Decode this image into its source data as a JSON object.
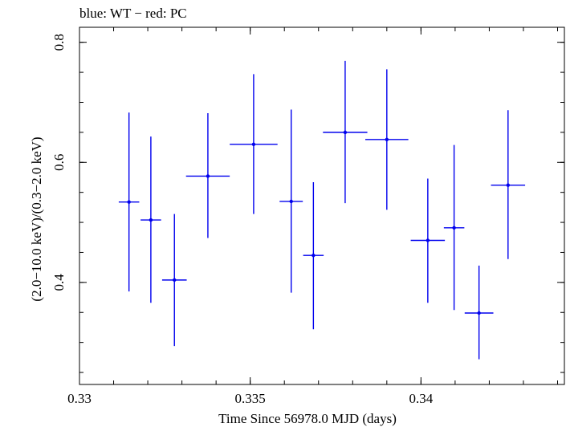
{
  "header": {
    "caption": "blue: WT − red: PC"
  },
  "chart_data": {
    "type": "scatter",
    "title": "",
    "xlabel": "Time Since 56978.0 MJD (days)",
    "ylabel": "(2.0−10.0 keV)/(0.3−2.0 keV)",
    "xlim": [
      0.33,
      0.3442
    ],
    "ylim": [
      0.23,
      0.825
    ],
    "xticks": [
      {
        "value": 0.33,
        "label": "0.33"
      },
      {
        "value": 0.335,
        "label": "0.335"
      },
      {
        "value": 0.34,
        "label": "0.34"
      }
    ],
    "yticks": [
      {
        "value": 0.4,
        "label": "0.4"
      },
      {
        "value": 0.6,
        "label": "0.6"
      },
      {
        "value": 0.8,
        "label": "0.8"
      }
    ],
    "grid": false,
    "series": [
      {
        "color": "#0000ee",
        "points": [
          {
            "x": 0.33145,
            "xerr": 0.0003,
            "y": 0.534,
            "ylo": 0.385,
            "yhi": 0.683
          },
          {
            "x": 0.33209,
            "xerr": 0.0003,
            "y": 0.504,
            "ylo": 0.366,
            "yhi": 0.643
          },
          {
            "x": 0.33278,
            "xerr": 0.00036,
            "y": 0.404,
            "ylo": 0.294,
            "yhi": 0.514
          },
          {
            "x": 0.33376,
            "xerr": 0.00064,
            "y": 0.577,
            "ylo": 0.474,
            "yhi": 0.682
          },
          {
            "x": 0.3351,
            "xerr": 0.0007,
            "y": 0.63,
            "ylo": 0.514,
            "yhi": 0.747
          },
          {
            "x": 0.3362,
            "xerr": 0.00034,
            "y": 0.535,
            "ylo": 0.383,
            "yhi": 0.688
          },
          {
            "x": 0.33685,
            "xerr": 0.0003,
            "y": 0.445,
            "ylo": 0.322,
            "yhi": 0.567
          },
          {
            "x": 0.33778,
            "xerr": 0.00065,
            "y": 0.65,
            "ylo": 0.532,
            "yhi": 0.769
          },
          {
            "x": 0.339,
            "xerr": 0.00063,
            "y": 0.638,
            "ylo": 0.521,
            "yhi": 0.755
          },
          {
            "x": 0.3402,
            "xerr": 0.0005,
            "y": 0.47,
            "ylo": 0.366,
            "yhi": 0.573
          },
          {
            "x": 0.34097,
            "xerr": 0.0003,
            "y": 0.491,
            "ylo": 0.354,
            "yhi": 0.629
          },
          {
            "x": 0.3417,
            "xerr": 0.00042,
            "y": 0.349,
            "ylo": 0.272,
            "yhi": 0.428
          },
          {
            "x": 0.34255,
            "xerr": 0.0005,
            "y": 0.562,
            "ylo": 0.439,
            "yhi": 0.687
          }
        ]
      }
    ]
  }
}
